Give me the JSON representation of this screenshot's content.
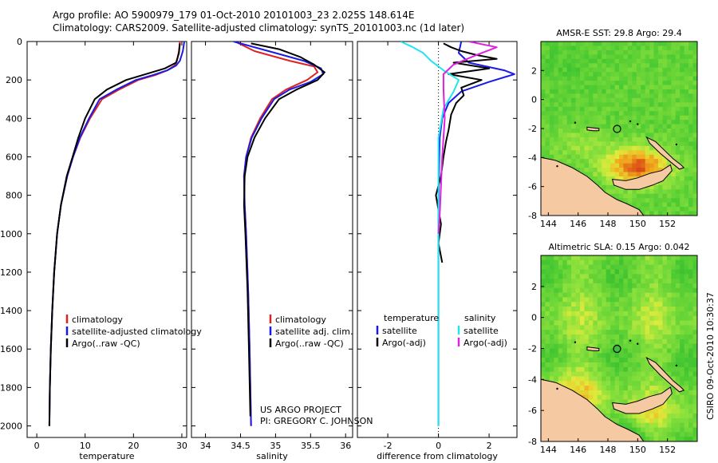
{
  "header": {
    "line1": "Argo profile: AO 5900979_179 01-Oct-2010 20101003_23 2.025S 148.614E",
    "line2": "Climatology: CARS2009. Satellite-adjusted climatology: synTS_20101003.nc (1d later)"
  },
  "side_stamp": "CSIRO 09-Oct-2010 10:30:37",
  "colors": {
    "climatology": "#dd2222",
    "satellite": "#1a1ae6",
    "argo": "#000000",
    "salinity_sat": "#22e5f0",
    "salinity_argo": "#e020e0",
    "land": "#f5c9a1"
  },
  "chart_data": [
    {
      "type": "line",
      "id": "temperature",
      "xlabel": "temperature",
      "ylabel": "",
      "xlim": [
        -2,
        31
      ],
      "ylim": [
        2060,
        0
      ],
      "xticks": [
        0,
        10,
        20,
        30
      ],
      "yticks": [
        0,
        200,
        400,
        600,
        800,
        1000,
        1200,
        1400,
        1600,
        1800,
        2000
      ],
      "legend": {
        "placement": "lower-middle",
        "entries": [
          "climatology",
          "satellite-adjusted climatology",
          "Argo(..raw -QC)"
        ]
      },
      "series": [
        {
          "name": "climatology",
          "color": "#dd2222",
          "x": [
            29.6,
            29.4,
            29.0,
            28.5,
            27.0,
            24.5,
            21.0,
            17.0,
            13.5,
            11.0,
            9.0,
            7.5,
            6.3,
            5.0,
            4.2,
            3.6,
            3.2,
            2.9,
            2.7,
            2.6
          ],
          "y": [
            0,
            50,
            100,
            125,
            150,
            175,
            200,
            250,
            300,
            400,
            500,
            600,
            700,
            850,
            1000,
            1200,
            1400,
            1600,
            1800,
            2000
          ]
        },
        {
          "name": "satellite-adjusted climatology",
          "color": "#1a1ae6",
          "x": [
            30.5,
            30.2,
            29.6,
            28.8,
            27.0,
            24.0,
            20.5,
            16.5,
            13.0,
            10.8,
            8.9,
            7.5,
            6.3,
            5.0,
            4.2,
            3.6,
            3.2,
            2.9,
            2.7,
            2.6
          ],
          "y": [
            0,
            50,
            100,
            125,
            150,
            175,
            200,
            250,
            300,
            400,
            500,
            600,
            700,
            850,
            1000,
            1200,
            1400,
            1600,
            1800,
            2000
          ]
        },
        {
          "name": "Argo(..raw -QC)",
          "color": "#000000",
          "x": [
            29.6,
            29.4,
            28.8,
            26.5,
            22.5,
            18.5,
            14.5,
            12.0,
            10.0,
            8.6,
            7.4,
            6.2,
            5.0,
            4.2,
            3.6,
            3.2,
            2.9,
            2.7,
            2.6
          ],
          "y": [
            10,
            60,
            110,
            140,
            170,
            200,
            250,
            300,
            400,
            500,
            600,
            700,
            850,
            1000,
            1200,
            1400,
            1600,
            1800,
            2000
          ]
        }
      ]
    },
    {
      "type": "line",
      "id": "salinity",
      "xlabel": "salinity",
      "ylabel": "",
      "xlim": [
        33.8,
        36.1
      ],
      "ylim": [
        2060,
        0
      ],
      "xticks": [
        34,
        34.5,
        35,
        35.5,
        36
      ],
      "legend": {
        "placement": "lower-right",
        "entries": [
          "climatology",
          "satellite adj. clim.",
          "Argo(..raw -QC)"
        ]
      },
      "annotations": [
        "US ARGO PROJECT",
        "PI: GREGORY C. JOHNSON"
      ],
      "series": [
        {
          "name": "climatology",
          "color": "#dd2222",
          "x": [
            34.42,
            34.7,
            35.2,
            35.55,
            35.6,
            35.45,
            35.15,
            34.95,
            34.78,
            34.65,
            34.58,
            34.55,
            34.56,
            34.58,
            34.61,
            34.63,
            34.64,
            34.65
          ],
          "y": [
            0,
            50,
            100,
            130,
            160,
            200,
            250,
            300,
            400,
            500,
            600,
            700,
            850,
            1000,
            1300,
            1600,
            1800,
            2000
          ]
        },
        {
          "name": "satellite adj. clim.",
          "color": "#1a1ae6",
          "x": [
            34.4,
            34.9,
            35.4,
            35.65,
            35.68,
            35.5,
            35.2,
            34.98,
            34.8,
            34.66,
            34.58,
            34.55,
            34.56,
            34.58,
            34.61,
            34.63,
            34.64,
            34.65
          ],
          "y": [
            0,
            50,
            100,
            140,
            170,
            210,
            250,
            300,
            400,
            500,
            600,
            700,
            850,
            1000,
            1300,
            1600,
            1800,
            2000
          ]
        },
        {
          "name": "Argo(..raw -QC)",
          "color": "#000000",
          "x": [
            34.65,
            35.05,
            35.35,
            35.55,
            35.7,
            35.6,
            35.3,
            35.05,
            34.85,
            34.7,
            34.6,
            34.56,
            34.55,
            34.57,
            34.6,
            34.62,
            34.64
          ],
          "y": [
            10,
            40,
            80,
            120,
            160,
            200,
            250,
            300,
            400,
            500,
            600,
            700,
            850,
            1000,
            1300,
            1600,
            1950
          ]
        }
      ]
    },
    {
      "type": "line",
      "id": "difference",
      "xlabel": "difference from climatology",
      "ylabel": "",
      "xlim": [
        -3.2,
        3.1
      ],
      "ylim": [
        2060,
        0
      ],
      "xticks": [
        -2,
        0,
        2
      ],
      "legend": {
        "placement": "lower-middle",
        "entries": [
          "temperature",
          "satellite",
          "Argo(-adj)",
          "salinity",
          "satellite",
          "Argo(-adj)"
        ]
      },
      "series": [
        {
          "name": "satellite",
          "color": "#1a1ae6",
          "x": [
            0.9,
            0.8,
            1.2,
            2.6,
            3.0,
            2.0,
            0.9,
            0.4,
            0.15,
            0.05,
            0.02,
            0.0,
            0.0,
            0.0,
            0.0
          ],
          "y": [
            0,
            60,
            110,
            150,
            170,
            210,
            260,
            320,
            400,
            500,
            700,
            900,
            1200,
            1600,
            2000
          ]
        },
        {
          "name": "Argo(-adj)",
          "color": "#000000",
          "x": [
            0.2,
            0.5,
            0.9,
            1.5,
            2.3,
            0.6,
            2.0,
            0.4,
            1.7,
            0.9,
            1.0,
            0.7,
            0.5,
            0.4,
            0.3,
            0.2,
            0.1,
            -0.1,
            0.1,
            0.0,
            0.15
          ],
          "y": [
            10,
            30,
            50,
            70,
            90,
            110,
            140,
            170,
            200,
            240,
            280,
            320,
            380,
            460,
            520,
            600,
            700,
            800,
            950,
            1050,
            1150
          ]
        },
        {
          "name": "satellite",
          "color": "#22e5f0",
          "x": [
            -1.5,
            -1.0,
            -0.6,
            -0.3,
            0.2,
            0.8,
            0.6,
            0.2,
            0.0,
            0.0,
            0.0
          ],
          "y": [
            0,
            30,
            60,
            100,
            150,
            200,
            260,
            350,
            500,
            1000,
            2000
          ]
        },
        {
          "name": "Argo(-adj)",
          "color": "#e020e0",
          "x": [
            1.2,
            2.3,
            1.5,
            0.6,
            0.2,
            0.2,
            0.25,
            0.15,
            0.1,
            0.05,
            0.0
          ],
          "y": [
            0,
            30,
            70,
            120,
            170,
            250,
            400,
            600,
            750,
            900,
            1000
          ]
        }
      ]
    },
    {
      "type": "heatmap",
      "id": "sst_map",
      "title": "AMSR-E SST: 29.8 Argo: 29.4",
      "xlim": [
        143.5,
        154
      ],
      "ylim": [
        -8,
        4
      ],
      "xticks": [
        144,
        146,
        148,
        150,
        152
      ],
      "yticks": [
        -8,
        -6,
        -4,
        -2,
        0,
        2
      ],
      "argo_position": [
        148.614,
        -2.025
      ]
    },
    {
      "type": "heatmap",
      "id": "sla_map",
      "title": "Altimetric SLA: 0.15 Argo: 0.042",
      "xlim": [
        143.5,
        154
      ],
      "ylim": [
        -8,
        4
      ],
      "xticks": [
        144,
        146,
        148,
        150,
        152
      ],
      "yticks": [
        -8,
        -6,
        -4,
        -2,
        0,
        2
      ],
      "argo_position": [
        148.614,
        -2.025
      ]
    }
  ]
}
